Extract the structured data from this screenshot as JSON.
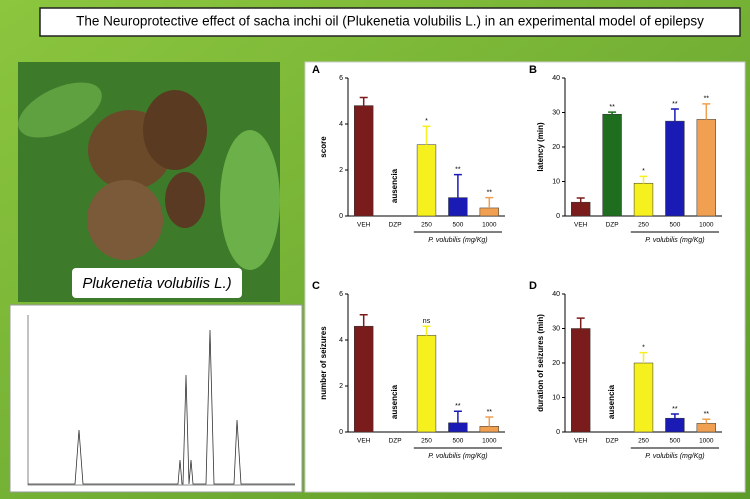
{
  "title": "The Neuroprotective effect of sacha inchi oil (Plukenetia volubilis L.) in an experimental model of epilepsy",
  "photo_label": "Plukenetia volubilis L.)",
  "chart_data": [
    {
      "type": "bar",
      "panel": "A",
      "y_label": "score",
      "x_label": "P. volubilis (mg/Kg)",
      "absent_label": "ausencia",
      "categories": [
        "VEH",
        "DZP",
        "250",
        "500",
        "1000"
      ],
      "values": [
        4.8,
        null,
        3.1,
        0.8,
        0.35
      ],
      "errors": [
        0.35,
        null,
        0.8,
        1.0,
        0.45
      ],
      "stars": [
        null,
        null,
        "*",
        "**",
        "**"
      ],
      "colors": [
        "#7a1c1c",
        "#1f6e1f",
        "#f5f01e",
        "#1a1ab5",
        "#f0a050"
      ],
      "ylim": [
        0,
        6
      ],
      "yticks": [
        0,
        2,
        4,
        6
      ]
    },
    {
      "type": "bar",
      "panel": "B",
      "y_label": "latency (min)",
      "x_label": "P. volubilis (mg/Kg)",
      "categories": [
        "VEH",
        "DZP",
        "250",
        "500",
        "1000"
      ],
      "values": [
        4,
        29.5,
        9.5,
        27.5,
        28
      ],
      "errors": [
        1.2,
        0.6,
        2,
        3.5,
        4.5
      ],
      "stars": [
        null,
        "**",
        "*",
        "**",
        "**"
      ],
      "colors": [
        "#7a1c1c",
        "#1f6e1f",
        "#f5f01e",
        "#1a1ab5",
        "#f0a050"
      ],
      "ylim": [
        0,
        40
      ],
      "yticks": [
        0,
        10,
        20,
        30,
        40
      ]
    },
    {
      "type": "bar",
      "panel": "C",
      "y_label": "number of seizures",
      "x_label": "P. volubilis (mg/Kg)",
      "absent_label": "ausencia",
      "categories": [
        "VEH",
        "DZP",
        "250",
        "500",
        "1000"
      ],
      "values": [
        4.6,
        null,
        4.2,
        0.4,
        0.25
      ],
      "errors": [
        0.5,
        null,
        0.4,
        0.5,
        0.4
      ],
      "stars": [
        null,
        null,
        "ns",
        "**",
        "**"
      ],
      "colors": [
        "#7a1c1c",
        "#1f6e1f",
        "#f5f01e",
        "#1a1ab5",
        "#f0a050"
      ],
      "ylim": [
        0,
        6
      ],
      "yticks": [
        0,
        2,
        4,
        6
      ]
    },
    {
      "type": "bar",
      "panel": "D",
      "y_label": "duration of seizures (min)",
      "x_label": "P. volubilis (mg/Kg)",
      "absent_label": "ausencia",
      "categories": [
        "VEH",
        "DZP",
        "250",
        "500",
        "1000"
      ],
      "values": [
        30,
        null,
        20,
        4,
        2.5
      ],
      "errors": [
        3,
        null,
        3,
        1.2,
        1.2
      ],
      "stars": [
        null,
        null,
        "*",
        "**",
        "**"
      ],
      "colors": [
        "#7a1c1c",
        "#1f6e1f",
        "#f5f01e",
        "#1a1ab5",
        "#f0a050"
      ],
      "ylim": [
        0,
        40
      ],
      "yticks": [
        0,
        10,
        20,
        30,
        40
      ]
    }
  ]
}
